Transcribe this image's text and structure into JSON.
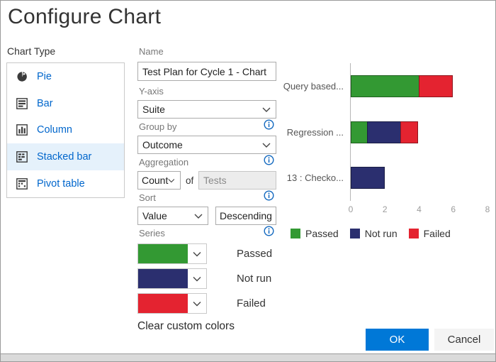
{
  "dialog": {
    "title": "Configure Chart"
  },
  "sidebar": {
    "label": "Chart Type",
    "items": [
      {
        "label": "Pie",
        "selected": false
      },
      {
        "label": "Bar",
        "selected": false
      },
      {
        "label": "Column",
        "selected": false
      },
      {
        "label": "Stacked bar",
        "selected": true
      },
      {
        "label": "Pivot table",
        "selected": false
      }
    ]
  },
  "form": {
    "name": {
      "label": "Name",
      "value": "Test Plan for Cycle 1 - Chart"
    },
    "y_axis": {
      "label": "Y-axis",
      "value": "Suite"
    },
    "group_by": {
      "label": "Group by",
      "value": "Outcome"
    },
    "aggregation": {
      "label": "Aggregation",
      "value": "Count",
      "of_label": "of",
      "field_value": "Tests"
    },
    "sort": {
      "label": "Sort",
      "value": "Value",
      "direction": "Descending"
    },
    "series": {
      "label": "Series",
      "items": [
        {
          "label": "Passed",
          "color": "#339933"
        },
        {
          "label": "Not run",
          "color": "#2b2f6f"
        },
        {
          "label": "Failed",
          "color": "#e42330"
        }
      ]
    },
    "clear_colors_label": "Clear custom colors"
  },
  "chart_data": {
    "type": "bar",
    "orientation": "horizontal",
    "stacked": true,
    "title": "",
    "categories": [
      "Query based...",
      "Regression ...",
      "13 : Checko..."
    ],
    "series": [
      {
        "name": "Passed",
        "color": "#339933",
        "values": [
          4,
          1,
          0
        ]
      },
      {
        "name": "Not run",
        "color": "#2b2f6f",
        "values": [
          0,
          2,
          2
        ]
      },
      {
        "name": "Failed",
        "color": "#e42330",
        "values": [
          2,
          1,
          0
        ]
      }
    ],
    "x_ticks": [
      0,
      2,
      4,
      6,
      8
    ],
    "xlim": [
      0,
      8
    ],
    "grid": false,
    "legend_position": "bottom"
  },
  "footer": {
    "ok_label": "OK",
    "cancel_label": "Cancel"
  },
  "colors": {
    "accent": "#0078d7",
    "link": "#0066cc",
    "selected_bg": "#e5f1fb"
  }
}
